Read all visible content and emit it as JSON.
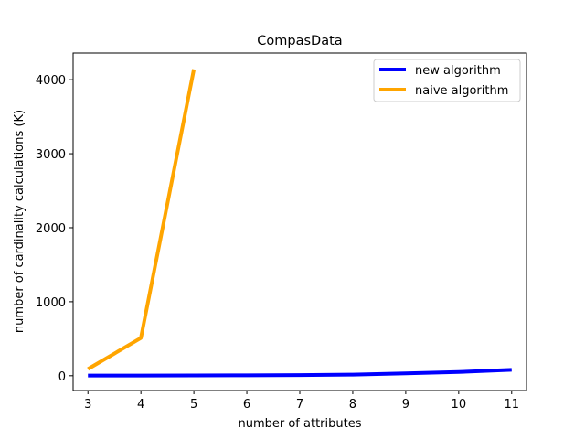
{
  "chart_data": {
    "type": "line",
    "title": "CompasData",
    "xlabel": "number of attributes",
    "ylabel": "number of cardinality calculations (K)",
    "x": [
      3,
      4,
      5,
      6,
      7,
      8,
      9,
      10,
      11
    ],
    "xticks": [
      "3",
      "4",
      "5",
      "6",
      "7",
      "8",
      "9",
      "10",
      "11"
    ],
    "yticks": [
      "0",
      "1000",
      "2000",
      "3000",
      "4000"
    ],
    "xlim": [
      2.72,
      11.28
    ],
    "ylim": [
      -200,
      4360
    ],
    "grid": false,
    "legend_position": "top-right",
    "series": [
      {
        "name": "new algorithm",
        "color": "#0000ff",
        "x": [
          3,
          4,
          5,
          6,
          7,
          8,
          9,
          10,
          11
        ],
        "values": [
          2,
          3,
          4,
          5,
          8,
          15,
          32,
          50,
          80
        ]
      },
      {
        "name": "naive algorithm",
        "color": "#ffa500",
        "x": [
          3,
          4,
          5
        ],
        "values": [
          90,
          510,
          4140
        ]
      }
    ]
  }
}
